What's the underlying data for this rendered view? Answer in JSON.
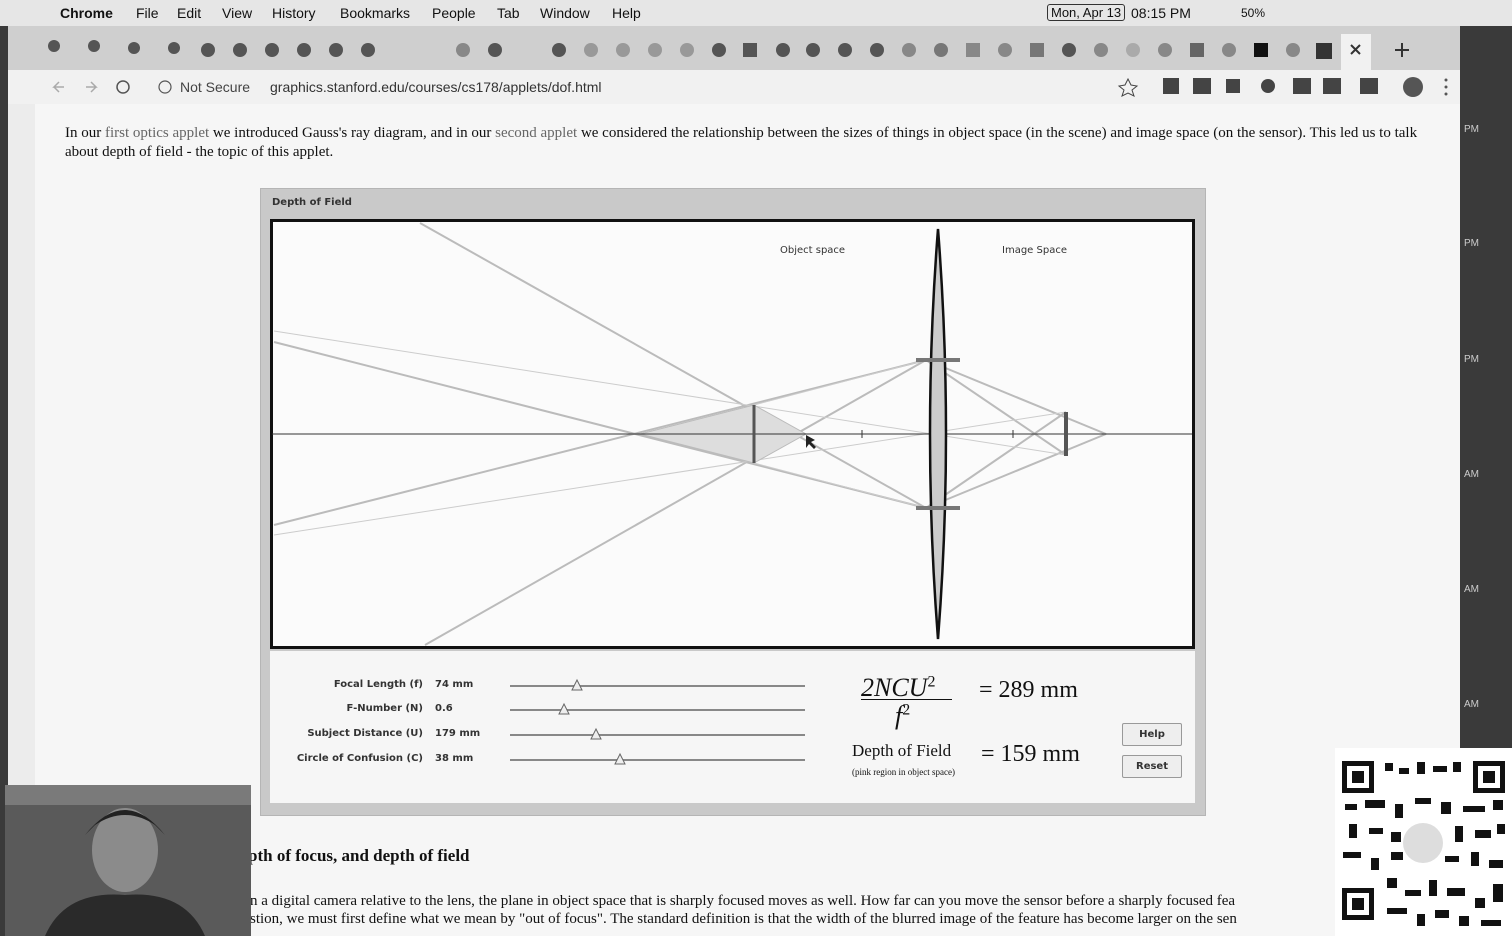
{
  "menubar": {
    "app": "Chrome",
    "menus": [
      "File",
      "Edit",
      "View",
      "History",
      "Bookmarks",
      "People",
      "Tab",
      "Window",
      "Help"
    ],
    "date": "Mon, Apr 13",
    "time": "08:15 PM",
    "battery": "50%"
  },
  "browser": {
    "security": "Not Secure",
    "url": "graphics.stanford.edu/courses/cs178/applets/dof.html"
  },
  "intro": {
    "text_1": "In our ",
    "link_1": "first optics applet",
    "text_2": " we introduced Gauss's ray diagram, and in our ",
    "link_2": "second applet",
    "text_3": " we considered the relationship between the sizes of things in object space (in the scene) and image space (on the sensor). This led us to talk about depth of field - the topic of this applet."
  },
  "applet": {
    "title": "Depth of Field",
    "object_label": "Object space",
    "image_label": "Image Space",
    "controls": [
      {
        "label": "Focal Length (f)",
        "value": "74 mm"
      },
      {
        "label": "F-Number (N)",
        "value": "0.6"
      },
      {
        "label": "Subject Distance (U)",
        "value": "179 mm"
      },
      {
        "label": "Circle of Confusion (C)",
        "value": "38 mm"
      }
    ],
    "formula": {
      "numerator": "2NCU",
      "numerator_exp": "2",
      "denominator": "f",
      "denominator_exp": "2",
      "result": "= 289 mm"
    },
    "dof": {
      "label": "Depth of Field",
      "note": "(pink region in object space)",
      "result": "= 159 mm"
    },
    "buttons": [
      "Help",
      "Reset"
    ]
  },
  "section": {
    "heading": "pth of focus, and depth of field",
    "lines": [
      "n a digital camera relative to the lens, the plane in object space that is sharply focused moves as well. How far can you move the sensor before a sharply focused fea",
      "stion, we must first define what we mean by \"out of focus\". The standard definition is that the width of the blurred image of the feature has become larger on the sen"
    ]
  },
  "side_labels": [
    "PM",
    "PM",
    "PM",
    "AM",
    "AM",
    "AM"
  ]
}
